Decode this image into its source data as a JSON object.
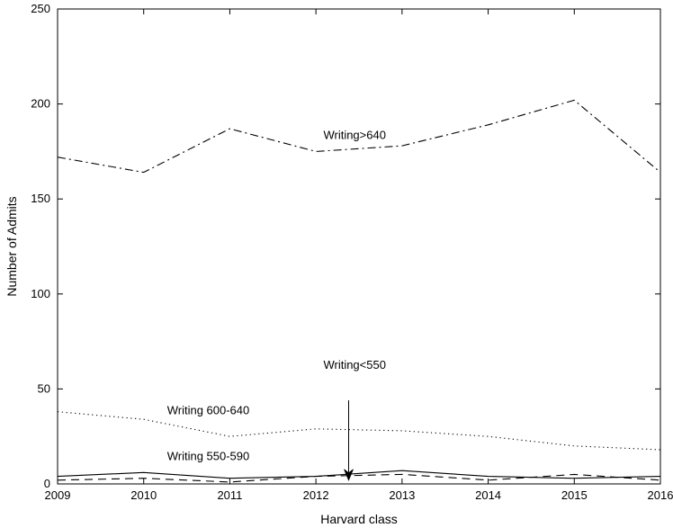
{
  "chart_data": {
    "type": "line",
    "xlabel": "Harvard class",
    "ylabel": "Number of Admits",
    "xlim": [
      2009,
      2016
    ],
    "ylim": [
      0,
      250
    ],
    "x_ticks": [
      2009,
      2010,
      2011,
      2012,
      2013,
      2014,
      2015,
      2016
    ],
    "y_ticks": [
      0,
      50,
      100,
      150,
      200,
      250
    ],
    "grid": false,
    "legend": "none",
    "series": [
      {
        "key": "gt640",
        "style": "dashdot",
        "color": "#000000",
        "x": [
          2009,
          2010,
          2011,
          2012,
          2013,
          2014,
          2015,
          2016
        ],
        "y": [
          172,
          164,
          187,
          175,
          178,
          189,
          202,
          164
        ]
      },
      {
        "key": "600_640",
        "style": "dotted",
        "color": "#000000",
        "x": [
          2009,
          2010,
          2011,
          2012,
          2013,
          2014,
          2015,
          2016
        ],
        "y": [
          38,
          34,
          25,
          29,
          28,
          25,
          20,
          18
        ]
      },
      {
        "key": "550_590",
        "style": "solid",
        "color": "#000000",
        "x": [
          2009,
          2010,
          2011,
          2012,
          2013,
          2014,
          2015,
          2016
        ],
        "y": [
          4,
          6,
          3,
          4,
          7,
          4,
          3,
          4
        ]
      },
      {
        "key": "lt550",
        "style": "dashed",
        "color": "#000000",
        "x": [
          2009,
          2010,
          2011,
          2012,
          2013,
          2014,
          2015,
          2016
        ],
        "y": [
          2,
          3,
          1,
          4,
          5,
          2,
          5,
          2
        ]
      }
    ],
    "annotations": [
      {
        "text": "Writing>640",
        "x": 2012.45,
        "y": 184
      },
      {
        "text": "Writing<550",
        "x": 2012.45,
        "y": 63
      },
      {
        "text": "Writing 600-640",
        "x": 2010.75,
        "y": 39
      },
      {
        "text": "Writing 550-590",
        "x": 2010.75,
        "y": 15
      }
    ],
    "arrow": {
      "x": 2012.38,
      "from_y": 44,
      "to_y": 2
    }
  }
}
